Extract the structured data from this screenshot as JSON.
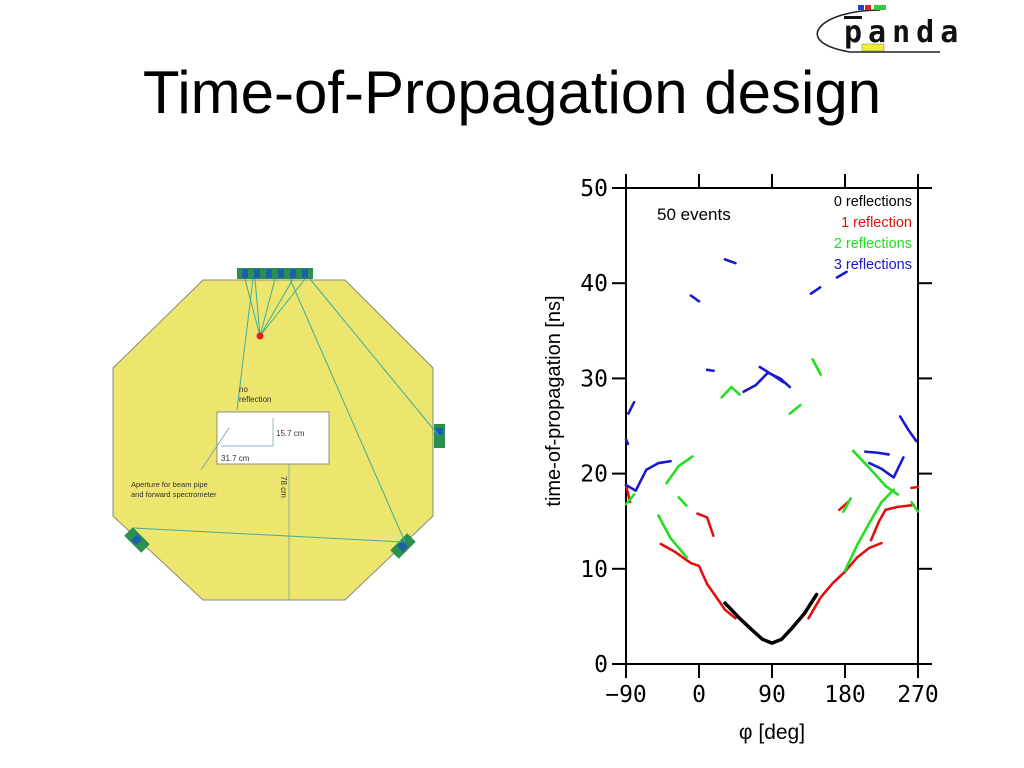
{
  "slide": {
    "title": "Time-of-Propagation design"
  },
  "logo": {
    "text": "panda",
    "icon": "panda-experiment-logo"
  },
  "detector_diagram": {
    "no_reflection_label_1": "no",
    "no_reflection_label_2": "reflection",
    "dim_height": "15.7 cm",
    "dim_width": "31.7 cm",
    "dim_total": "78 cm",
    "aperture_label_1": "Aperture for beam pipe",
    "aperture_label_2": "and forward spectrometer",
    "colors": {
      "plate": "#ece56e",
      "plate_border": "#8a8a7a",
      "ray": "#3fae9a",
      "sensor": "#2a8f4f",
      "sensor_dark": "#1d5fae",
      "hit": "#e02020"
    }
  },
  "chart_data": {
    "type": "scatter",
    "title": "",
    "annotation": "50 events",
    "xlabel": "φ [deg]",
    "ylabel": "time-of-propagation [ns]",
    "xlim": [
      -90,
      270
    ],
    "ylim": [
      0,
      50
    ],
    "x_ticks": [
      -90,
      0,
      90,
      180,
      270
    ],
    "x_tick_labels": [
      "−90",
      "0",
      "90",
      "180",
      "270"
    ],
    "y_ticks": [
      0,
      10,
      20,
      30,
      40,
      50
    ],
    "y_tick_labels": [
      "0",
      "10",
      "20",
      "30",
      "40",
      "50"
    ],
    "legend_position": "top-right",
    "grid": false,
    "series": [
      {
        "name": "0 reflections",
        "color": "#000000",
        "segments": [
          [
            [
              32,
              6.4
            ],
            [
              50,
              4.8
            ],
            [
              65,
              3.6
            ],
            [
              78,
              2.6
            ],
            [
              90,
              2.2
            ],
            [
              102,
              2.6
            ],
            [
              115,
              3.8
            ],
            [
              130,
              5.3
            ],
            [
              145,
              7.3
            ]
          ]
        ]
      },
      {
        "name": "1 reflection",
        "color": "#e01010",
        "segments": [
          [
            [
              -47,
              12.6
            ],
            [
              -30,
              11.8
            ],
            [
              -10,
              10.6
            ],
            [
              0,
              10.3
            ],
            [
              10,
              8.4
            ],
            [
              20,
              7.2
            ],
            [
              32,
              5.7
            ],
            [
              45,
              4.8
            ]
          ],
          [
            [
              -2,
              15.8
            ],
            [
              10,
              15.4
            ],
            [
              18,
              13.4
            ]
          ],
          [
            [
              135,
              4.8
            ],
            [
              150,
              7.0
            ],
            [
              165,
              8.5
            ],
            [
              180,
              9.7
            ],
            [
              195,
              11.2
            ],
            [
              210,
              12.2
            ],
            [
              225,
              12.7
            ]
          ],
          [
            [
              173,
              16.2
            ],
            [
              185,
              17.1
            ]
          ],
          [
            [
              212,
              13.0
            ],
            [
              222,
              15.0
            ],
            [
              230,
              16.2
            ],
            [
              245,
              16.5
            ],
            [
              265,
              16.7
            ]
          ],
          [
            [
              -90,
              18.8
            ],
            [
              -85,
              17.0
            ]
          ],
          [
            [
              262,
              18.5
            ],
            [
              270,
              18.6
            ]
          ]
        ]
      },
      {
        "name": "2 reflections",
        "color": "#22dd22",
        "segments": [
          [
            [
              -50,
              15.6
            ],
            [
              -35,
              13.2
            ],
            [
              -15,
              11.2
            ]
          ],
          [
            [
              -25,
              17.5
            ],
            [
              -15,
              16.6
            ]
          ],
          [
            [
              -40,
              19.0
            ],
            [
              -25,
              20.8
            ],
            [
              -8,
              21.8
            ]
          ],
          [
            [
              -90,
              16.8
            ],
            [
              -80,
              17.8
            ]
          ],
          [
            [
              28,
              28.0
            ],
            [
              40,
              29.1
            ],
            [
              50,
              28.3
            ]
          ],
          [
            [
              112,
              26.3
            ],
            [
              125,
              27.2
            ]
          ],
          [
            [
              140,
              32.0
            ],
            [
              150,
              30.4
            ]
          ],
          [
            [
              180,
              9.8
            ],
            [
              195,
              12.5
            ],
            [
              210,
              14.8
            ],
            [
              225,
              17.0
            ],
            [
              240,
              18.3
            ]
          ],
          [
            [
              178,
              16.0
            ],
            [
              187,
              17.4
            ]
          ],
          [
            [
              190,
              22.4
            ],
            [
              210,
              20.6
            ],
            [
              230,
              18.7
            ],
            [
              245,
              17.8
            ]
          ],
          [
            [
              262,
              17.0
            ],
            [
              270,
              16.0
            ]
          ]
        ]
      },
      {
        "name": "3 reflections",
        "color": "#1a1acc",
        "segments": [
          [
            [
              -90,
              23.6
            ],
            [
              -87,
              23.0
            ]
          ],
          [
            [
              -87,
              26.3
            ],
            [
              -80,
              27.5
            ]
          ],
          [
            [
              -90,
              18.8
            ],
            [
              -78,
              18.2
            ],
            [
              -65,
              20.4
            ],
            [
              -50,
              21.1
            ],
            [
              -35,
              21.3
            ]
          ],
          [
            [
              -10,
              38.7
            ],
            [
              0,
              38.1
            ]
          ],
          [
            [
              10,
              30.9
            ],
            [
              18,
              30.8
            ]
          ],
          [
            [
              32,
              42.5
            ],
            [
              45,
              42.1
            ]
          ],
          [
            [
              55,
              28.6
            ],
            [
              70,
              29.3
            ],
            [
              85,
              30.6
            ],
            [
              100,
              30.0
            ],
            [
              112,
              29.1
            ]
          ],
          [
            [
              75,
              31.2
            ],
            [
              90,
              30.4
            ],
            [
              104,
              29.6
            ]
          ],
          [
            [
              138,
              38.9
            ],
            [
              150,
              39.6
            ]
          ],
          [
            [
              170,
              40.6
            ],
            [
              182,
              41.2
            ]
          ],
          [
            [
              205,
              22.3
            ],
            [
              220,
              22.2
            ],
            [
              235,
              22.0
            ]
          ],
          [
            [
              210,
              21.1
            ],
            [
              225,
              20.5
            ],
            [
              240,
              19.6
            ],
            [
              252,
              21.7
            ]
          ],
          [
            [
              248,
              26.0
            ],
            [
              258,
              24.6
            ],
            [
              268,
              23.4
            ]
          ]
        ]
      }
    ]
  }
}
